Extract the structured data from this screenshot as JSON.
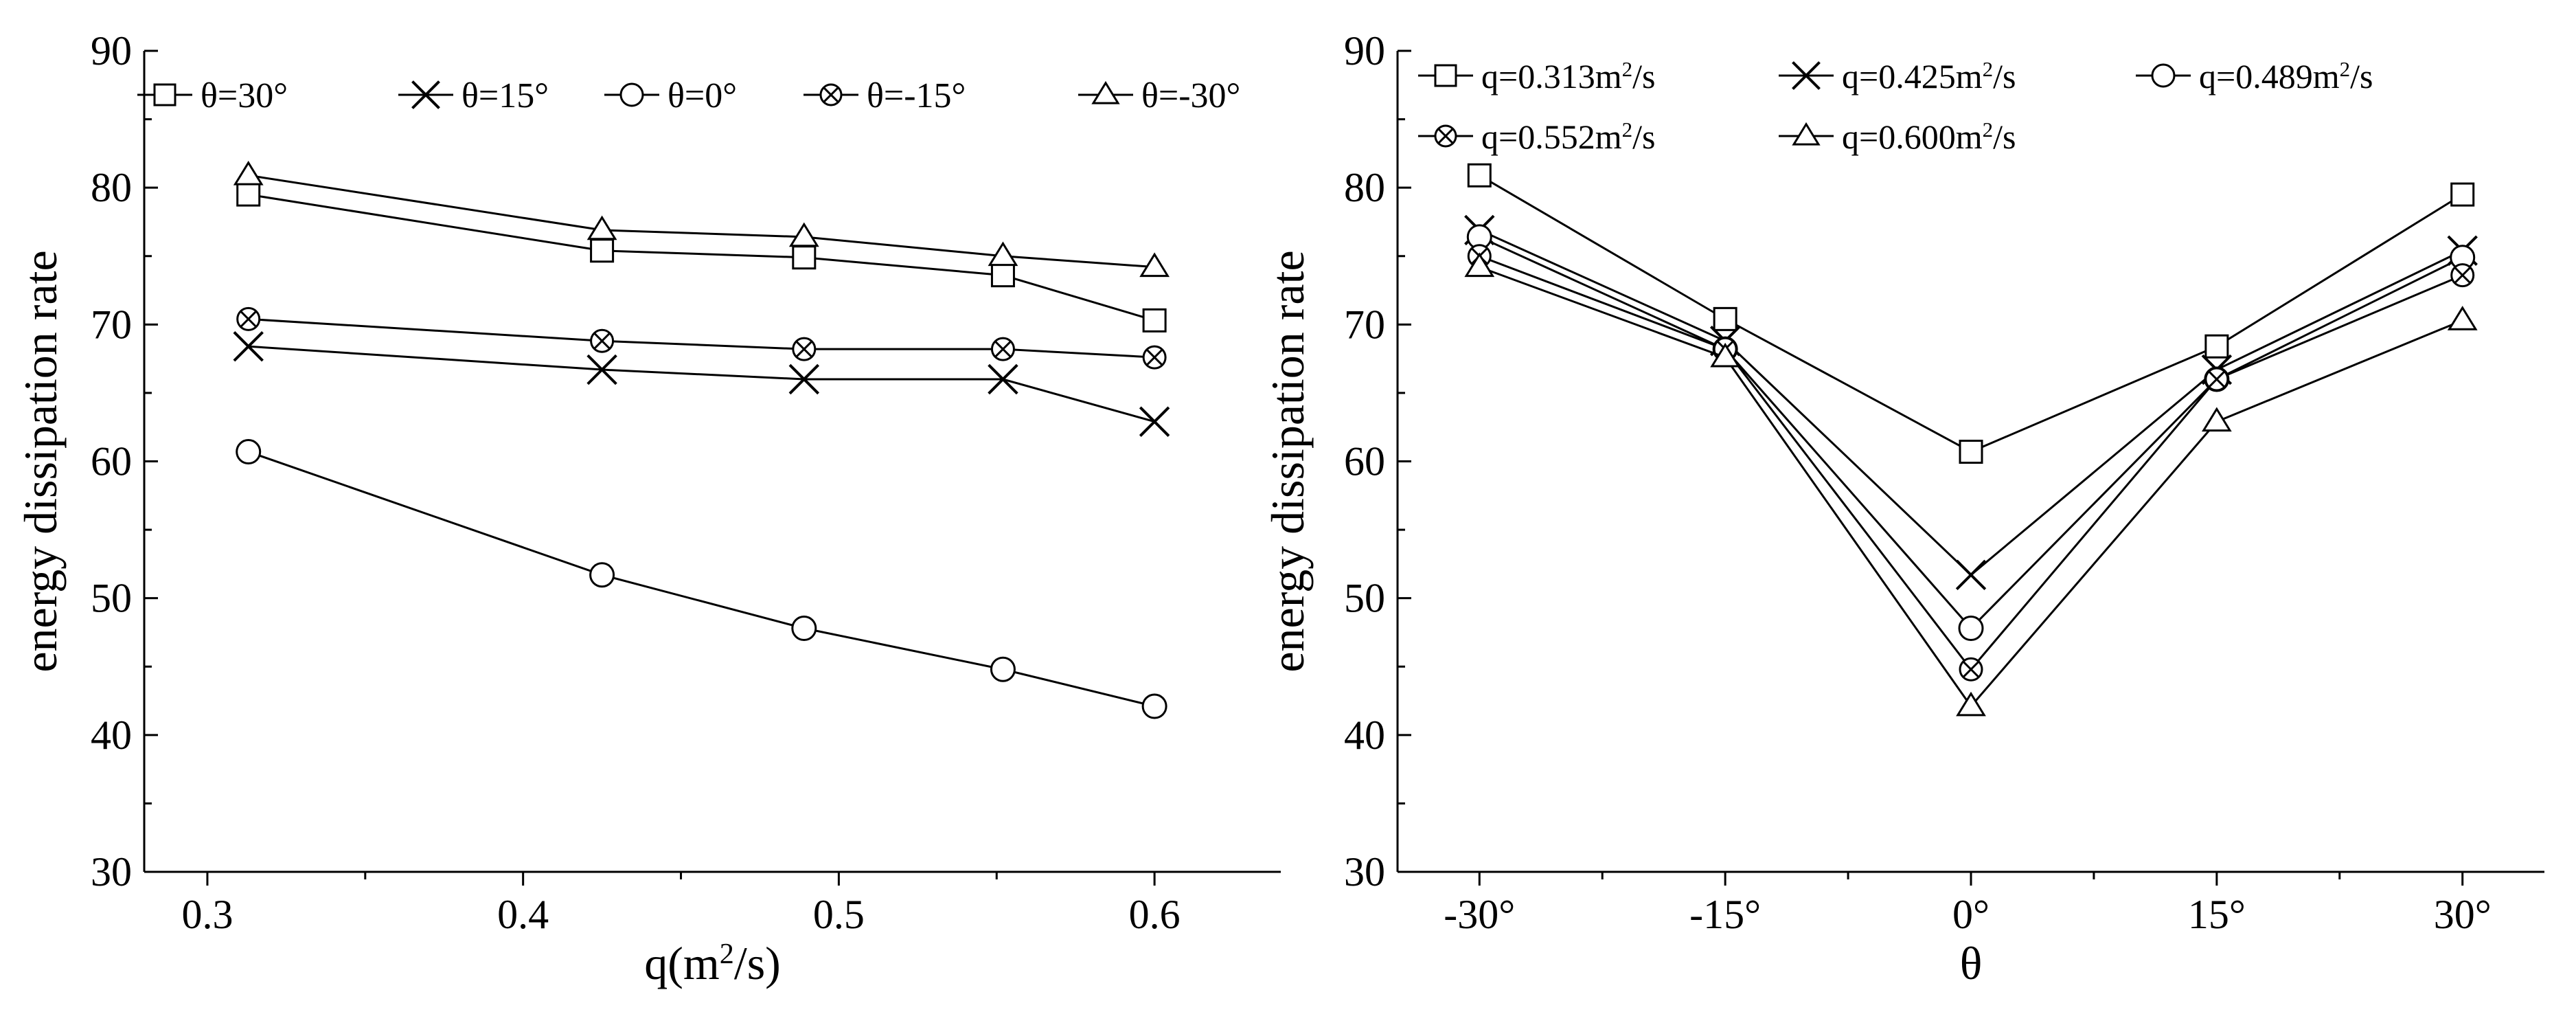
{
  "chart_data": [
    {
      "type": "line",
      "xlabel": "q(m²/s)",
      "ylabel": "energy dissipation rate",
      "xlim": [
        0.28,
        0.64
      ],
      "ylim": [
        30,
        90
      ],
      "x": [
        0.313,
        0.425,
        0.489,
        0.552,
        0.6
      ],
      "xticks": [
        0.3,
        0.4,
        0.5,
        0.6
      ],
      "xtick_labels": [
        "0.3",
        "0.4",
        "0.5",
        "0.6"
      ],
      "yticks": [
        30,
        40,
        50,
        60,
        70,
        80,
        90
      ],
      "legend_position": "top",
      "series": [
        {
          "name": "θ=30°",
          "marker": "square",
          "values": [
            79.5,
            75.4,
            74.9,
            73.6,
            70.3
          ]
        },
        {
          "name": "θ=15°",
          "marker": "x",
          "values": [
            68.4,
            66.7,
            66.0,
            66.0,
            62.9
          ]
        },
        {
          "name": "θ=0°",
          "marker": "circle",
          "values": [
            60.7,
            51.7,
            47.8,
            44.8,
            42.1
          ]
        },
        {
          "name": "θ=-15°",
          "marker": "circlex",
          "values": [
            70.4,
            68.8,
            68.2,
            68.2,
            67.6
          ]
        },
        {
          "name": "θ=-30°",
          "marker": "triangle",
          "values": [
            80.9,
            76.9,
            76.4,
            75.0,
            74.2
          ]
        }
      ]
    },
    {
      "type": "line",
      "xlabel": "θ",
      "ylabel": "energy dissipation rate",
      "xlim": [
        -35,
        35
      ],
      "ylim": [
        30,
        90
      ],
      "x": [
        -30,
        -15,
        0,
        15,
        30
      ],
      "xticks": [
        -30,
        -15,
        0,
        15,
        30
      ],
      "xtick_labels": [
        "-30°",
        "-15°",
        "0°",
        "15°",
        "30°"
      ],
      "yticks": [
        30,
        40,
        50,
        60,
        70,
        80,
        90
      ],
      "legend_position": "top",
      "series": [
        {
          "name": "q=0.313m²/s",
          "marker": "square",
          "values": [
            80.9,
            70.4,
            60.7,
            68.4,
            79.5
          ]
        },
        {
          "name": "q=0.425m²/s",
          "marker": "x",
          "values": [
            76.9,
            68.8,
            51.7,
            66.7,
            75.4
          ]
        },
        {
          "name": "q=0.489m²/s",
          "marker": "circle",
          "values": [
            76.4,
            68.2,
            47.8,
            66.0,
            74.9
          ]
        },
        {
          "name": "q=0.552m²/s",
          "marker": "circlex",
          "values": [
            75.0,
            68.2,
            44.8,
            66.0,
            73.6
          ]
        },
        {
          "name": "q=0.600m²/s",
          "marker": "triangle",
          "values": [
            74.2,
            67.6,
            42.1,
            62.9,
            70.3
          ]
        }
      ]
    }
  ]
}
